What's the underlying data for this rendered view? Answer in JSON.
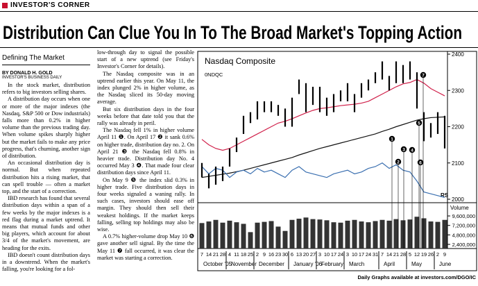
{
  "header": {
    "section": "INVESTOR'S CORNER",
    "headline": "Distribution Can Clue You In To The Broad Market's Topping Action"
  },
  "sidebar": {
    "heading": "Defining The Market",
    "byline": "BY DONALD H. GOLD",
    "affiliation": "INVESTOR'S BUSINESS DAILY"
  },
  "columns": [
    [
      "In the stock market, distribution refers to big investors selling shares.",
      "A distribution day occurs when one or more of the major indexes (the Nasdaq, S&P 500 or Dow industrials) falls more than 0.2% in higher volume than the previous trading day. When volume spikes sharply higher but the market fails to make any price progress, that's churning, another sign of distribution.",
      "An occasional distribution day is normal. But when repeated distribution hits a rising market, that can spell trouble — often a market top, and the start of a correction.",
      "IBD research has found that several distribution days within a span of a few weeks by the major indexes is a red flag during a market uptrend. It means that mutual funds and other big players, which account for about 3/4 of the market's movement, are heading for the exits.",
      "IBD doesn't count distribution days in a downtrend. When the market's falling, you're looking for a fol-"
    ],
    [
      "low-through day to signal the possible start of a new uptrend (see Friday's Investor's Corner for details).",
      "The Nasdaq composite was in an uptrend earlier this year. On May 11, the index plunged 2% in higher volume, as the Nasdaq sliced its 50-day moving average.",
      "But six distribution days in the four weeks before that date told you that the rally was already in peril.",
      "The Nasdaq fell 1% in higher volume April 11 ❶. On April 17 ❷ it sank 0.6% on higher trade, distribution day no. 2. On April 21 ❸ the Nasdaq fell 0.8% in heavier trade. Distribution day No. 4 occurred May 3 ❹. That made four clear distribution days since April 11.",
      "On May 9 ❺ the index slid 0.3% in higher trade. Five distribution days in four weeks signaled a waning rally. In such cases, investors should ease off margin. They should then sell their weakest holdings. If the market keeps falling, selling top holdings may also be wise.",
      "A 0.7% higher-volume drop May 10 ❻ gave another sell signal. By the time the May 11 ❼ fall occurred, it was clear the market was starting a correction."
    ]
  ],
  "chart_data": {
    "type": "hilo",
    "title": "Nasdaq Composite",
    "ticker": "0NDQC",
    "categories": [
      7,
      14,
      21,
      28,
      4,
      11,
      18,
      25,
      2,
      9,
      16,
      23,
      30,
      6,
      13,
      20,
      27,
      3,
      10,
      17,
      24,
      3,
      10,
      17,
      24,
      31,
      7,
      14,
      21,
      28,
      5,
      12,
      19,
      26,
      2,
      9
    ],
    "months": [
      "October '05",
      "November",
      "December",
      "January '06",
      "February",
      "March",
      "April",
      "May",
      "June"
    ],
    "high": [
      2100,
      2070,
      2090,
      2090,
      2140,
      2170,
      2230,
      2240,
      2270,
      2270,
      2270,
      2260,
      2250,
      2280,
      2330,
      2320,
      2310,
      2310,
      2280,
      2290,
      2300,
      2320,
      2290,
      2320,
      2330,
      2350,
      2380,
      2340,
      2380,
      2370,
      2380,
      2350,
      2240,
      2210,
      2240,
      2230
    ],
    "low": [
      2060,
      2030,
      2040,
      2050,
      2090,
      2130,
      2180,
      2210,
      2220,
      2240,
      2240,
      2230,
      2200,
      2200,
      2290,
      2240,
      2260,
      2240,
      2230,
      2240,
      2270,
      2270,
      2240,
      2280,
      2300,
      2320,
      2330,
      2300,
      2320,
      2320,
      2330,
      2250,
      2160,
      2170,
      2180,
      2140
    ],
    "series": [
      {
        "color": "#d0204a",
        "values": [
          2165,
          2150,
          2140,
          2135,
          2140,
          2150,
          2160,
          2170,
          2180,
          2190,
          2200,
          2210,
          2215,
          2222,
          2230,
          2238,
          2245,
          2250,
          2252,
          2255,
          2258,
          2260,
          2262,
          2265,
          2270,
          2280,
          2290,
          2300,
          2310,
          2318,
          2322,
          2330,
          2320,
          2305,
          2295,
          2285
        ]
      },
      {
        "color": "#111111",
        "values": [
          2060,
          2063,
          2066,
          2069,
          2072,
          2076,
          2080,
          2085,
          2090,
          2095,
          2100,
          2105,
          2110,
          2115,
          2122,
          2128,
          2134,
          2140,
          2145,
          2150,
          2155,
          2160,
          2165,
          2170,
          2175,
          2180,
          2187,
          2193,
          2200,
          2206,
          2212,
          2218,
          2222,
          2225,
          2226,
          2227
        ]
      },
      {
        "color": "#3a6fb0",
        "values": [
          2090,
          2070,
          2085,
          2080,
          2060,
          2075,
          2080,
          2070,
          2085,
          2075,
          2080,
          2070,
          2060,
          2080,
          2090,
          2075,
          2070,
          2065,
          2060,
          2070,
          2075,
          2080,
          2070,
          2075,
          2085,
          2090,
          2100,
          2085,
          2095,
          2080,
          2075,
          2050,
          2020,
          2015,
          2010,
          2005
        ]
      }
    ],
    "ylim": [
      2000,
      2400
    ],
    "yticks": [
      2000,
      2100,
      2200,
      2300,
      2400
    ],
    "rs_label": "RS",
    "volume_label": "Volume",
    "volume": [
      7800000,
      8200000,
      8600000,
      7900000,
      8400000,
      8000000,
      7600000,
      5500000,
      7900000,
      8100000,
      8300000,
      6900000,
      5800000,
      8600000,
      8900000,
      9200000,
      8800000,
      8700000,
      8500000,
      8000000,
      7900000,
      8400000,
      8600000,
      8200000,
      8000000,
      8300000,
      8600000,
      8400000,
      8800000,
      8500000,
      8700000,
      9400000,
      9000000,
      8200000,
      8100000,
      8600000
    ],
    "vylim": [
      1350000,
      12250000
    ],
    "vyticks": [
      {
        "value": 2400000,
        "label": "2,400,000"
      },
      {
        "value": 4800000,
        "label": "4,800,000"
      },
      {
        "value": 7200000,
        "label": "7,200,000"
      },
      {
        "value": 9600000,
        "label": "9,600,000"
      }
    ],
    "markers": [
      "1",
      "2",
      "3",
      "4",
      "5",
      "6",
      "7"
    ],
    "footer": "Daily Graphs available at investors.com/DGO/IC"
  }
}
